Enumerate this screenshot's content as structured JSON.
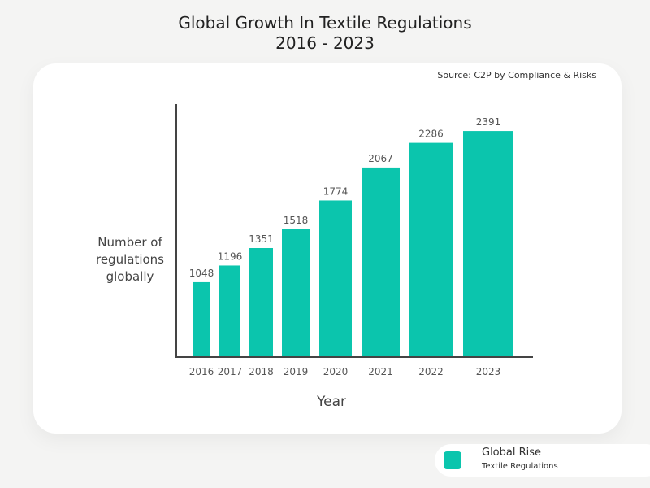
{
  "chart_data": {
    "type": "bar",
    "title": "Global Growth In Textile Regulations",
    "subtitle": "2016 - 2023",
    "source": "Source: C2P by Compliance & Risks",
    "xlabel": "Year",
    "ylabel": "Number of regulations globally",
    "categories": [
      "2016",
      "2017",
      "2018",
      "2019",
      "2020",
      "2021",
      "2022",
      "2023"
    ],
    "values": [
      1048,
      1196,
      1351,
      1518,
      1774,
      2067,
      2286,
      2391
    ],
    "ylim": [
      390,
      2630
    ],
    "grid": false,
    "color": "#0bc5ad",
    "legend": {
      "placement": "bottom-right",
      "line1": "Global Rise",
      "line2": "Textile Regulations"
    }
  }
}
